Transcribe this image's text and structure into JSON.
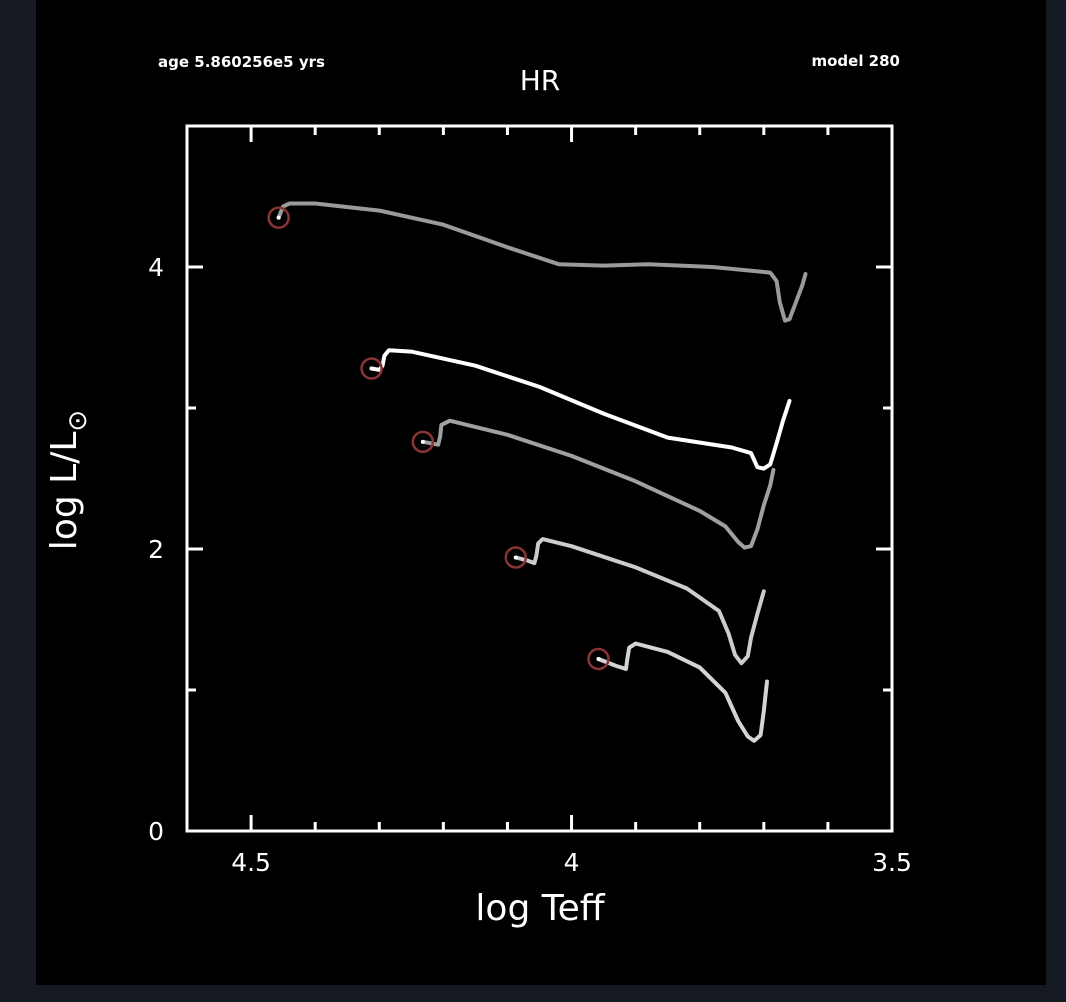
{
  "header": {
    "age": "age 5.860256e5 yrs",
    "model": "model 280"
  },
  "colors": {
    "background": "#000000",
    "page": "#151a22",
    "axes": "#ffffff",
    "marker": "#8a3434"
  },
  "chart_data": {
    "type": "line",
    "title": "HR",
    "xlabel": "log Teff",
    "ylabel_main": "log L/L",
    "ylabel_sub": "⊙",
    "xlim": [
      4.6,
      3.5
    ],
    "ylim": [
      0,
      5
    ],
    "x_ticks": [
      {
        "value": 4.5,
        "label": "4.5"
      },
      {
        "value": 4.0,
        "label": "4"
      },
      {
        "value": 3.5,
        "label": "3.5"
      }
    ],
    "x_minor_ticks": [
      4.4,
      4.3,
      4.2,
      4.1,
      3.9,
      3.8,
      3.7,
      3.6
    ],
    "y_ticks": [
      {
        "value": 0,
        "label": "0"
      },
      {
        "value": 2,
        "label": "2"
      },
      {
        "value": 4,
        "label": "4"
      }
    ],
    "y_minor_ticks": [
      1,
      3
    ],
    "series": [
      {
        "color": "#9a9a9a",
        "marker": {
          "x": 4.457,
          "y": 4.35
        },
        "points": [
          [
            4.457,
            4.35
          ],
          [
            4.45,
            4.43
          ],
          [
            4.44,
            4.45
          ],
          [
            4.4,
            4.45
          ],
          [
            4.3,
            4.4
          ],
          [
            4.2,
            4.3
          ],
          [
            4.1,
            4.14
          ],
          [
            4.02,
            4.02
          ],
          [
            3.95,
            4.01
          ],
          [
            3.88,
            4.02
          ],
          [
            3.78,
            4.0
          ],
          [
            3.69,
            3.96
          ],
          [
            3.68,
            3.9
          ],
          [
            3.675,
            3.75
          ],
          [
            3.667,
            3.62
          ],
          [
            3.66,
            3.63
          ],
          [
            3.65,
            3.75
          ],
          [
            3.64,
            3.87
          ],
          [
            3.635,
            3.95
          ]
        ]
      },
      {
        "color": "#ffffff",
        "marker": {
          "x": 4.312,
          "y": 3.28
        },
        "points": [
          [
            4.312,
            3.28
          ],
          [
            4.3,
            3.27
          ],
          [
            4.295,
            3.3
          ],
          [
            4.292,
            3.37
          ],
          [
            4.285,
            3.41
          ],
          [
            4.25,
            3.4
          ],
          [
            4.15,
            3.3
          ],
          [
            4.05,
            3.15
          ],
          [
            3.95,
            2.96
          ],
          [
            3.85,
            2.79
          ],
          [
            3.75,
            2.72
          ],
          [
            3.72,
            2.68
          ],
          [
            3.71,
            2.58
          ],
          [
            3.7,
            2.57
          ],
          [
            3.69,
            2.6
          ],
          [
            3.68,
            2.75
          ],
          [
            3.67,
            2.91
          ],
          [
            3.66,
            3.05
          ]
        ]
      },
      {
        "color": "#a0a0a0",
        "marker": {
          "x": 4.232,
          "y": 2.76
        },
        "points": [
          [
            4.232,
            2.76
          ],
          [
            4.22,
            2.75
          ],
          [
            4.208,
            2.74
          ],
          [
            4.205,
            2.8
          ],
          [
            4.203,
            2.88
          ],
          [
            4.19,
            2.91
          ],
          [
            4.1,
            2.81
          ],
          [
            4.0,
            2.66
          ],
          [
            3.9,
            2.48
          ],
          [
            3.8,
            2.27
          ],
          [
            3.76,
            2.16
          ],
          [
            3.74,
            2.05
          ],
          [
            3.73,
            2.01
          ],
          [
            3.72,
            2.02
          ],
          [
            3.71,
            2.14
          ],
          [
            3.7,
            2.31
          ],
          [
            3.69,
            2.45
          ],
          [
            3.685,
            2.56
          ]
        ]
      },
      {
        "color": "#cccccc",
        "marker": {
          "x": 4.087,
          "y": 1.94
        },
        "points": [
          [
            4.087,
            1.94
          ],
          [
            4.07,
            1.92
          ],
          [
            4.058,
            1.9
          ],
          [
            4.055,
            1.95
          ],
          [
            4.052,
            2.04
          ],
          [
            4.045,
            2.07
          ],
          [
            4.0,
            2.02
          ],
          [
            3.9,
            1.87
          ],
          [
            3.82,
            1.72
          ],
          [
            3.77,
            1.56
          ],
          [
            3.755,
            1.4
          ],
          [
            3.745,
            1.25
          ],
          [
            3.735,
            1.19
          ],
          [
            3.725,
            1.24
          ],
          [
            3.72,
            1.37
          ],
          [
            3.71,
            1.54
          ],
          [
            3.7,
            1.7
          ]
        ]
      },
      {
        "color": "#d4d4d4",
        "marker": {
          "x": 3.958,
          "y": 1.22
        },
        "points": [
          [
            3.958,
            1.22
          ],
          [
            3.93,
            1.17
          ],
          [
            3.915,
            1.15
          ],
          [
            3.913,
            1.22
          ],
          [
            3.91,
            1.3
          ],
          [
            3.9,
            1.33
          ],
          [
            3.85,
            1.27
          ],
          [
            3.8,
            1.16
          ],
          [
            3.76,
            0.98
          ],
          [
            3.74,
            0.78
          ],
          [
            3.725,
            0.67
          ],
          [
            3.715,
            0.64
          ],
          [
            3.705,
            0.68
          ],
          [
            3.7,
            0.85
          ],
          [
            3.695,
            1.06
          ]
        ]
      }
    ]
  }
}
